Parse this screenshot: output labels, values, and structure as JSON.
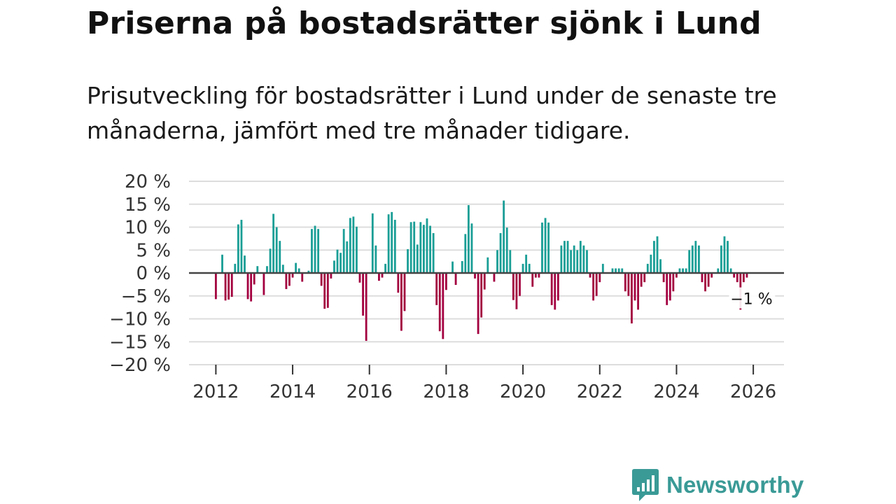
{
  "header": {
    "title": "Priserna på bostadsrätter sjönk i Lund",
    "subtitle": "Prisutveckling för bostadsrätter i Lund under de senaste tre månaderna, jämfört med tre månader tidigare."
  },
  "brand": {
    "name": "Newsworthy",
    "icon": "newsworthy-logo-icon",
    "color": "#3a9a96"
  },
  "colors": {
    "positive": "#1a9e96",
    "negative": "#a3003f",
    "grid": "#dddddd",
    "zero_line": "#444444"
  },
  "chart_data": {
    "type": "bar",
    "title": "Priserna på bostadsrätter sjönk i Lund",
    "xlabel": "",
    "ylabel": "",
    "ylim": [
      -20,
      20
    ],
    "xlim": [
      2011.3,
      2026.8
    ],
    "yticks": [
      20,
      15,
      10,
      5,
      0,
      -5,
      -10,
      -15,
      -20
    ],
    "ytick_labels": [
      "20 %",
      "15 %",
      "10 %",
      "5 %",
      "0 %",
      "−5 %",
      "−10 %",
      "−15 %",
      "−20 %"
    ],
    "xticks": [
      2012,
      2014,
      2016,
      2018,
      2020,
      2022,
      2024,
      2026
    ],
    "xtick_labels": [
      "2012",
      "2014",
      "2016",
      "2018",
      "2020",
      "2022",
      "2024",
      "2026"
    ],
    "x_start": 2012.0,
    "x_step": 0.08333,
    "unit": "%",
    "values": [
      -5.7,
      0,
      4,
      -6,
      -5.8,
      -5.2,
      2,
      10.6,
      11.6,
      3.8,
      -5.7,
      -6.2,
      -2.5,
      1.5,
      0,
      -4.8,
      1.5,
      5.3,
      12.9,
      10,
      7,
      1.8,
      -3.5,
      -2.8,
      -1,
      2.2,
      1,
      -1.9,
      0,
      0.5,
      9.6,
      10.3,
      9.6,
      -2.8,
      -7.8,
      -7.6,
      -1.2,
      2.7,
      5.1,
      4.4,
      9.6,
      6.9,
      12,
      12.3,
      10.1,
      -2.1,
      -9.3,
      -14.8,
      0,
      13,
      6,
      -1.7,
      -1,
      2,
      12.8,
      13.3,
      11.6,
      -4.3,
      -12.6,
      -8.3,
      5.2,
      11.1,
      11.2,
      6.2,
      11.1,
      10.5,
      11.9,
      10.3,
      8.7,
      -7,
      -12.7,
      -14.4,
      -3.7,
      0,
      2.5,
      -2.6,
      0,
      2.6,
      8.5,
      14.8,
      10.8,
      -1.2,
      -13.3,
      -9.7,
      -3.6,
      3.4,
      0,
      -1.9,
      5,
      8.7,
      15.8,
      9.9,
      5,
      -5.9,
      -7.9,
      -5,
      2,
      4,
      2,
      -3,
      -1,
      -1,
      11,
      12,
      11,
      -7,
      -8,
      -6,
      6,
      7,
      7,
      5,
      6,
      5,
      7,
      6,
      5,
      -1,
      -6,
      -5,
      -2,
      2,
      0,
      0,
      1,
      1,
      1,
      1,
      -4,
      -5,
      -11,
      -6,
      -8,
      -3,
      -2,
      2,
      4,
      7,
      8,
      3,
      -2,
      -7,
      -6,
      -4,
      -1,
      1,
      1,
      1,
      5,
      6,
      7,
      6,
      -2,
      -4,
      -3,
      -1,
      0,
      1,
      6,
      8,
      7,
      1,
      -1,
      -2,
      -8,
      -2,
      -1
    ],
    "annotation": {
      "label": "−1 %",
      "x": 2025.95,
      "y": -1
    }
  }
}
